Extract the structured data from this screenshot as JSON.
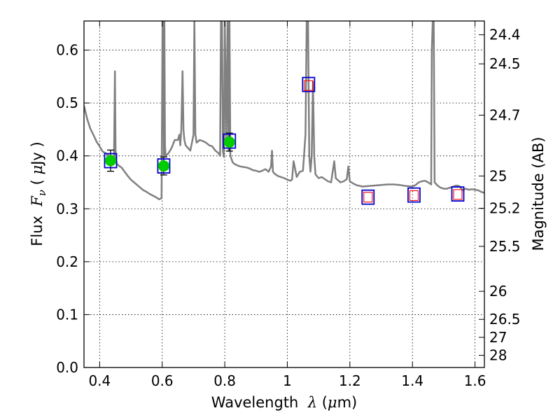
{
  "chart_data": {
    "type": "line",
    "title": "",
    "xlabel": "Wavelength",
    "xlabel_math": "λ",
    "xlabel_unit_open": " (",
    "xlabel_unit_mu": "μ",
    "xlabel_unit_rest": "m)",
    "ylabel": "Flux",
    "ylabel_math": "F",
    "ylabel_math_sub": "ν",
    "ylabel_unit_open": " ( ",
    "ylabel_unit_mu": "μ",
    "ylabel_unit_rest": "Jy )",
    "y2label": "Magnitude (AB)",
    "xlim": [
      0.35,
      1.63
    ],
    "ylim": [
      0.0,
      0.655
    ],
    "grid": true,
    "x_ticks": [
      "0.4",
      "0.6",
      "0.8",
      "1",
      "1.2",
      "1.4",
      "1.6"
    ],
    "x_tick_values": [
      0.4,
      0.6,
      0.8,
      1.0,
      1.2,
      1.4,
      1.6
    ],
    "y_ticks": [
      "0.0",
      "0.1",
      "0.2",
      "0.3",
      "0.4",
      "0.5",
      "0.6"
    ],
    "y_tick_values": [
      0.0,
      0.1,
      0.2,
      0.3,
      0.4,
      0.5,
      0.6
    ],
    "y2_ticks": [
      {
        "label": "24.4",
        "flux": 0.629
      },
      {
        "label": "24.5",
        "flux": 0.574
      },
      {
        "label": "24.7",
        "flux": 0.477
      },
      {
        "label": "25",
        "flux": 0.362
      },
      {
        "label": "25.2",
        "flux": 0.301
      },
      {
        "label": "25.5",
        "flux": 0.229
      },
      {
        "label": "26",
        "flux": 0.144
      },
      {
        "label": "26.5",
        "flux": 0.091
      },
      {
        "label": "27",
        "flux": 0.057
      },
      {
        "label": "28",
        "flux": 0.023
      }
    ],
    "series": [
      {
        "kind": "spectrum",
        "color": "#808080",
        "x": [
          0.35,
          0.36,
          0.37,
          0.38,
          0.39,
          0.4,
          0.41,
          0.42,
          0.43,
          0.44,
          0.446,
          0.449,
          0.451,
          0.453,
          0.455,
          0.46,
          0.47,
          0.48,
          0.49,
          0.5,
          0.51,
          0.52,
          0.53,
          0.54,
          0.55,
          0.56,
          0.57,
          0.58,
          0.59,
          0.598,
          0.601,
          0.603,
          0.605,
          0.607,
          0.609,
          0.611,
          0.62,
          0.63,
          0.64,
          0.65,
          0.655,
          0.658,
          0.661,
          0.665,
          0.668,
          0.671,
          0.675,
          0.69,
          0.7,
          0.703,
          0.706,
          0.71,
          0.72,
          0.73,
          0.74,
          0.75,
          0.76,
          0.77,
          0.78,
          0.785,
          0.788,
          0.791,
          0.794,
          0.797,
          0.8,
          0.805,
          0.809,
          0.812,
          0.815,
          0.818,
          0.821,
          0.825,
          0.83,
          0.84,
          0.85,
          0.86,
          0.87,
          0.88,
          0.89,
          0.9,
          0.91,
          0.92,
          0.93,
          0.94,
          0.948,
          0.951,
          0.954,
          0.96,
          0.97,
          0.98,
          0.99,
          1.0,
          1.01,
          1.015,
          1.02,
          1.03,
          1.04,
          1.05,
          1.058,
          1.062,
          1.066,
          1.07,
          1.074,
          1.078,
          1.082,
          1.086,
          1.09,
          1.1,
          1.11,
          1.12,
          1.13,
          1.14,
          1.15,
          1.155,
          1.16,
          1.17,
          1.18,
          1.19,
          1.195,
          1.2,
          1.21,
          1.22,
          1.24,
          1.26,
          1.28,
          1.3,
          1.32,
          1.34,
          1.36,
          1.38,
          1.4,
          1.41,
          1.42,
          1.43,
          1.44,
          1.45,
          1.46,
          1.462,
          1.465,
          1.468,
          1.471,
          1.48,
          1.49,
          1.5,
          1.51,
          1.52,
          1.53,
          1.54,
          1.55,
          1.56,
          1.57,
          1.58,
          1.59,
          1.6,
          1.61,
          1.62,
          1.63
        ],
        "y": [
          0.495,
          0.47,
          0.452,
          0.44,
          0.427,
          0.418,
          0.408,
          0.405,
          0.4,
          0.395,
          0.398,
          0.56,
          0.41,
          0.39,
          0.385,
          0.382,
          0.378,
          0.37,
          0.362,
          0.355,
          0.35,
          0.345,
          0.34,
          0.335,
          0.332,
          0.328,
          0.325,
          0.322,
          0.318,
          0.32,
          0.66,
          0.68,
          0.4,
          0.66,
          0.42,
          0.4,
          0.405,
          0.415,
          0.43,
          0.43,
          0.44,
          0.42,
          0.45,
          0.56,
          0.45,
          0.43,
          0.42,
          0.41,
          0.44,
          0.66,
          0.44,
          0.425,
          0.43,
          0.428,
          0.425,
          0.42,
          0.418,
          0.41,
          0.405,
          0.4,
          0.66,
          0.66,
          0.41,
          0.398,
          0.66,
          0.42,
          0.66,
          0.41,
          0.66,
          0.4,
          0.395,
          0.388,
          0.385,
          0.382,
          0.38,
          0.379,
          0.378,
          0.376,
          0.373,
          0.372,
          0.37,
          0.372,
          0.375,
          0.37,
          0.38,
          0.41,
          0.37,
          0.366,
          0.362,
          0.36,
          0.358,
          0.355,
          0.353,
          0.355,
          0.39,
          0.36,
          0.37,
          0.372,
          0.44,
          0.66,
          0.66,
          0.4,
          0.37,
          0.4,
          0.54,
          0.4,
          0.365,
          0.358,
          0.36,
          0.356,
          0.352,
          0.35,
          0.39,
          0.358,
          0.355,
          0.35,
          0.352,
          0.356,
          0.38,
          0.352,
          0.348,
          0.345,
          0.342,
          0.343,
          0.344,
          0.345,
          0.346,
          0.346,
          0.345,
          0.343,
          0.342,
          0.345,
          0.35,
          0.352,
          0.353,
          0.35,
          0.346,
          0.6,
          0.66,
          0.66,
          0.35,
          0.344,
          0.34,
          0.338,
          0.338,
          0.34,
          0.342,
          0.344,
          0.343,
          0.335,
          0.338,
          0.336,
          0.337,
          0.336,
          0.335,
          0.332,
          0.33
        ]
      },
      {
        "kind": "observed",
        "marker": "circle",
        "color": "#00cc00",
        "x": [
          0.435,
          0.605,
          0.815
        ],
        "y": [
          0.391,
          0.381,
          0.426
        ],
        "yerr": [
          0.02,
          0.017,
          0.017
        ]
      },
      {
        "kind": "model-blue",
        "marker": "square",
        "color": "#0000cc",
        "x": [
          0.435,
          0.605,
          0.815,
          1.068,
          1.258,
          1.405,
          1.545
        ],
        "y": [
          0.391,
          0.381,
          0.428,
          0.535,
          0.322,
          0.326,
          0.328
        ]
      },
      {
        "kind": "model-red",
        "marker": "square",
        "color": "#ff0000",
        "x": [
          1.068,
          1.258,
          1.405,
          1.545
        ],
        "y": [
          0.533,
          0.322,
          0.325,
          0.327
        ]
      }
    ]
  }
}
